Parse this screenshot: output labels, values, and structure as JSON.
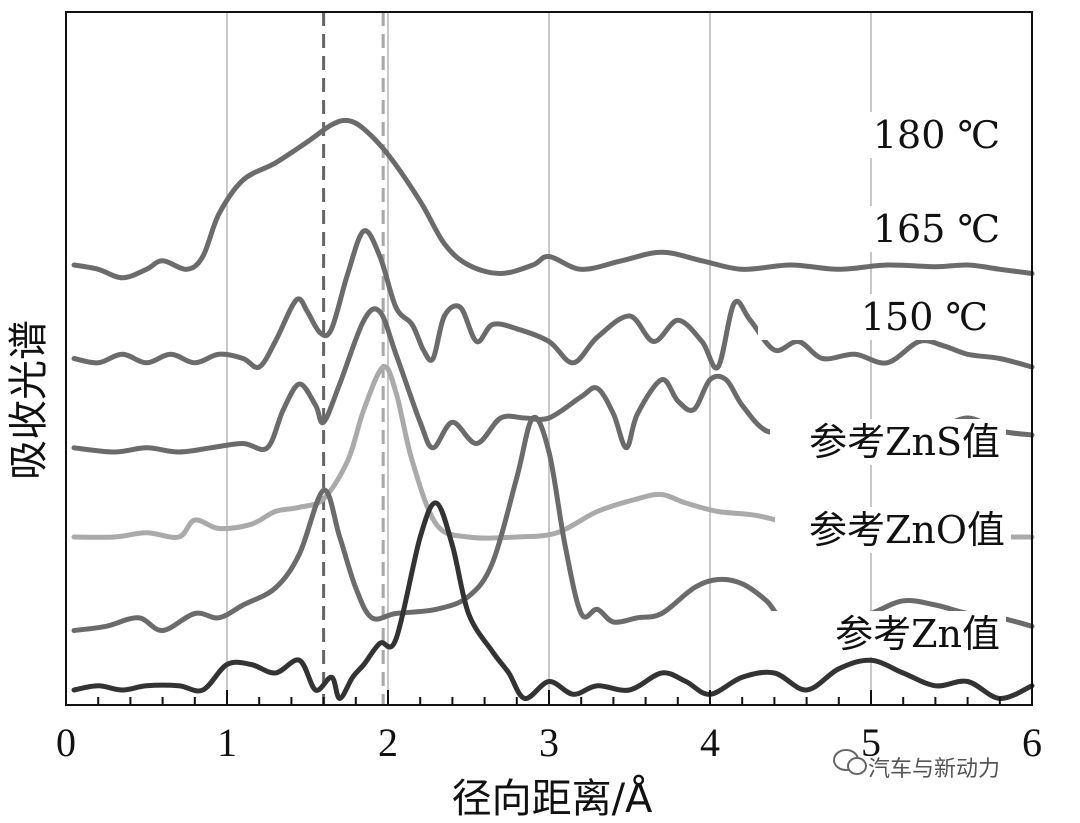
{
  "chart_data": {
    "type": "line",
    "xlabel": "径向距离/Å",
    "ylabel": "吸收光谱",
    "xlim": [
      0,
      6
    ],
    "x_ticks": [
      "0",
      "1",
      "2",
      "3",
      "4",
      "5",
      "6"
    ],
    "grid": "vertical",
    "reference_lines": [
      1.6,
      1.97
    ],
    "watermark": "汽车与新动力",
    "series": [
      {
        "name": "180 ℃",
        "color": "#6b6b6b",
        "offset": 5.0,
        "points": [
          [
            0.05,
            0.0
          ],
          [
            0.2,
            -0.05
          ],
          [
            0.35,
            -0.15
          ],
          [
            0.5,
            -0.05
          ],
          [
            0.6,
            0.05
          ],
          [
            0.75,
            -0.05
          ],
          [
            0.85,
            0.1
          ],
          [
            0.95,
            0.6
          ],
          [
            1.1,
            1.0
          ],
          [
            1.3,
            1.2
          ],
          [
            1.5,
            1.45
          ],
          [
            1.65,
            1.65
          ],
          [
            1.75,
            1.7
          ],
          [
            1.85,
            1.6
          ],
          [
            2.0,
            1.3
          ],
          [
            2.2,
            0.75
          ],
          [
            2.35,
            0.25
          ],
          [
            2.5,
            0.0
          ],
          [
            2.7,
            -0.1
          ],
          [
            2.9,
            0.0
          ],
          [
            3.0,
            0.1
          ],
          [
            3.2,
            -0.05
          ],
          [
            3.45,
            0.05
          ],
          [
            3.7,
            0.15
          ],
          [
            3.95,
            0.05
          ],
          [
            4.2,
            -0.05
          ],
          [
            4.5,
            0.0
          ],
          [
            4.8,
            -0.05
          ],
          [
            5.1,
            0.0
          ],
          [
            5.4,
            -0.02
          ],
          [
            5.6,
            0.0
          ],
          [
            5.8,
            -0.05
          ],
          [
            6.0,
            -0.1
          ]
        ]
      },
      {
        "name": "165 ℃",
        "color": "#6b6b6b",
        "offset": 3.9,
        "points": [
          [
            0.05,
            0.0
          ],
          [
            0.2,
            -0.05
          ],
          [
            0.35,
            0.05
          ],
          [
            0.5,
            -0.05
          ],
          [
            0.65,
            0.05
          ],
          [
            0.8,
            -0.05
          ],
          [
            0.95,
            0.05
          ],
          [
            1.1,
            0.0
          ],
          [
            1.2,
            -0.1
          ],
          [
            1.3,
            0.2
          ],
          [
            1.4,
            0.6
          ],
          [
            1.45,
            0.7
          ],
          [
            1.5,
            0.55
          ],
          [
            1.58,
            0.3
          ],
          [
            1.65,
            0.35
          ],
          [
            1.75,
            1.0
          ],
          [
            1.85,
            1.5
          ],
          [
            1.95,
            1.2
          ],
          [
            2.05,
            0.6
          ],
          [
            2.15,
            0.4
          ],
          [
            2.22,
            0.1
          ],
          [
            2.28,
            0.0
          ],
          [
            2.35,
            0.5
          ],
          [
            2.45,
            0.6
          ],
          [
            2.55,
            0.2
          ],
          [
            2.65,
            0.4
          ],
          [
            2.8,
            0.35
          ],
          [
            3.0,
            0.2
          ],
          [
            3.15,
            -0.05
          ],
          [
            3.3,
            0.25
          ],
          [
            3.5,
            0.5
          ],
          [
            3.65,
            0.2
          ],
          [
            3.8,
            0.45
          ],
          [
            3.95,
            0.2
          ],
          [
            4.05,
            -0.1
          ],
          [
            4.15,
            0.65
          ],
          [
            4.25,
            0.45
          ],
          [
            4.4,
            0.1
          ],
          [
            4.55,
            0.2
          ],
          [
            4.7,
            0.0
          ],
          [
            4.9,
            0.05
          ],
          [
            5.1,
            -0.05
          ],
          [
            5.3,
            0.2
          ],
          [
            5.45,
            0.15
          ],
          [
            5.6,
            0.05
          ],
          [
            5.8,
            0.0
          ],
          [
            6.0,
            -0.1
          ]
        ]
      },
      {
        "name": "150 ℃",
        "color": "#6b6b6b",
        "offset": 2.85,
        "points": [
          [
            0.05,
            0.0
          ],
          [
            0.3,
            -0.05
          ],
          [
            0.5,
            0.0
          ],
          [
            0.7,
            -0.05
          ],
          [
            0.9,
            0.0
          ],
          [
            1.1,
            0.05
          ],
          [
            1.25,
            0.0
          ],
          [
            1.35,
            0.45
          ],
          [
            1.45,
            0.75
          ],
          [
            1.55,
            0.5
          ],
          [
            1.6,
            0.3
          ],
          [
            1.7,
            0.75
          ],
          [
            1.85,
            1.5
          ],
          [
            1.95,
            1.6
          ],
          [
            2.05,
            1.1
          ],
          [
            2.2,
            0.3
          ],
          [
            2.28,
            0.0
          ],
          [
            2.4,
            0.3
          ],
          [
            2.55,
            0.05
          ],
          [
            2.7,
            0.35
          ],
          [
            2.85,
            0.35
          ],
          [
            3.0,
            0.35
          ],
          [
            3.2,
            0.6
          ],
          [
            3.3,
            0.7
          ],
          [
            3.4,
            0.4
          ],
          [
            3.48,
            0.0
          ],
          [
            3.55,
            0.4
          ],
          [
            3.7,
            0.8
          ],
          [
            3.8,
            0.55
          ],
          [
            3.9,
            0.45
          ],
          [
            4.0,
            0.8
          ],
          [
            4.1,
            0.8
          ],
          [
            4.2,
            0.5
          ],
          [
            4.35,
            0.2
          ],
          [
            4.55,
            0.2
          ],
          [
            4.65,
            0.0
          ],
          [
            4.8,
            0.15
          ],
          [
            5.0,
            0.05
          ],
          [
            5.2,
            0.1
          ],
          [
            5.4,
            0.2
          ],
          [
            5.6,
            0.35
          ],
          [
            5.8,
            0.2
          ],
          [
            6.0,
            0.15
          ]
        ]
      },
      {
        "name": "参考ZnS值",
        "color": "#aaaaaa",
        "offset": 1.8,
        "points": [
          [
            0.05,
            0.0
          ],
          [
            0.3,
            0.0
          ],
          [
            0.5,
            0.05
          ],
          [
            0.7,
            0.0
          ],
          [
            0.8,
            0.2
          ],
          [
            0.95,
            0.1
          ],
          [
            1.15,
            0.15
          ],
          [
            1.3,
            0.3
          ],
          [
            1.45,
            0.35
          ],
          [
            1.6,
            0.45
          ],
          [
            1.75,
            0.9
          ],
          [
            1.85,
            1.5
          ],
          [
            1.97,
            2.0
          ],
          [
            2.05,
            1.7
          ],
          [
            2.15,
            0.9
          ],
          [
            2.3,
            0.15
          ],
          [
            2.5,
            0.0
          ],
          [
            2.8,
            0.0
          ],
          [
            3.05,
            0.05
          ],
          [
            3.3,
            0.3
          ],
          [
            3.55,
            0.45
          ],
          [
            3.7,
            0.5
          ],
          [
            3.85,
            0.4
          ],
          [
            4.05,
            0.3
          ],
          [
            4.3,
            0.25
          ],
          [
            4.6,
            0.1
          ],
          [
            4.9,
            -0.05
          ],
          [
            5.2,
            -0.05
          ],
          [
            5.5,
            0.0
          ],
          [
            5.8,
            0.0
          ],
          [
            6.0,
            0.0
          ]
        ]
      },
      {
        "name": "参考ZnO值",
        "color": "#6b6b6b",
        "offset": 0.7,
        "points": [
          [
            0.05,
            0.0
          ],
          [
            0.25,
            0.05
          ],
          [
            0.45,
            0.15
          ],
          [
            0.6,
            0.0
          ],
          [
            0.8,
            0.2
          ],
          [
            0.95,
            0.15
          ],
          [
            1.1,
            0.3
          ],
          [
            1.3,
            0.5
          ],
          [
            1.45,
            0.9
          ],
          [
            1.6,
            1.65
          ],
          [
            1.7,
            1.1
          ],
          [
            1.8,
            0.5
          ],
          [
            1.9,
            0.15
          ],
          [
            2.05,
            0.2
          ],
          [
            2.3,
            0.25
          ],
          [
            2.5,
            0.4
          ],
          [
            2.65,
            0.8
          ],
          [
            2.8,
            1.8
          ],
          [
            2.9,
            2.5
          ],
          [
            3.0,
            2.1
          ],
          [
            3.1,
            1.0
          ],
          [
            3.2,
            0.2
          ],
          [
            3.3,
            0.25
          ],
          [
            3.4,
            0.1
          ],
          [
            3.55,
            0.15
          ],
          [
            3.7,
            0.2
          ],
          [
            3.9,
            0.5
          ],
          [
            4.05,
            0.6
          ],
          [
            4.2,
            0.55
          ],
          [
            4.35,
            0.35
          ],
          [
            4.5,
            0.05
          ],
          [
            4.8,
            0.1
          ],
          [
            5.0,
            0.2
          ],
          [
            5.2,
            0.35
          ],
          [
            5.4,
            0.3
          ],
          [
            5.6,
            0.2
          ],
          [
            5.8,
            0.15
          ],
          [
            6.0,
            0.05
          ]
        ]
      },
      {
        "name": "参考Zn值",
        "color": "#333333",
        "offset": 0.0,
        "points": [
          [
            0.05,
            0.0
          ],
          [
            0.2,
            0.05
          ],
          [
            0.35,
            0.0
          ],
          [
            0.5,
            0.05
          ],
          [
            0.7,
            0.05
          ],
          [
            0.85,
            0.0
          ],
          [
            1.0,
            0.3
          ],
          [
            1.15,
            0.3
          ],
          [
            1.3,
            0.2
          ],
          [
            1.45,
            0.35
          ],
          [
            1.55,
            0.0
          ],
          [
            1.65,
            0.15
          ],
          [
            1.7,
            -0.1
          ],
          [
            1.78,
            0.15
          ],
          [
            1.85,
            0.3
          ],
          [
            1.95,
            0.55
          ],
          [
            2.05,
            0.6
          ],
          [
            2.2,
            1.8
          ],
          [
            2.3,
            2.2
          ],
          [
            2.4,
            1.7
          ],
          [
            2.5,
            0.9
          ],
          [
            2.65,
            0.45
          ],
          [
            2.75,
            0.2
          ],
          [
            2.85,
            -0.1
          ],
          [
            3.0,
            0.1
          ],
          [
            3.15,
            -0.05
          ],
          [
            3.3,
            0.05
          ],
          [
            3.5,
            0.0
          ],
          [
            3.7,
            0.2
          ],
          [
            3.85,
            0.1
          ],
          [
            4.0,
            -0.05
          ],
          [
            4.2,
            0.15
          ],
          [
            4.4,
            0.2
          ],
          [
            4.6,
            0.0
          ],
          [
            4.8,
            0.25
          ],
          [
            5.0,
            0.35
          ],
          [
            5.2,
            0.2
          ],
          [
            5.4,
            0.05
          ],
          [
            5.6,
            0.1
          ],
          [
            5.8,
            -0.1
          ],
          [
            6.0,
            0.05
          ]
        ]
      }
    ]
  }
}
